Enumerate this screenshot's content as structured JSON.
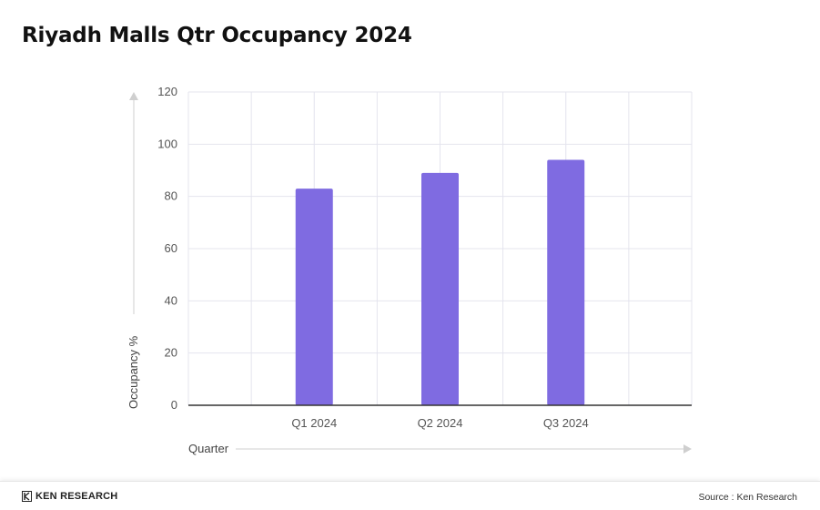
{
  "chart_data": {
    "type": "bar",
    "title": "Riyadh Malls Qtr Occupancy 2024",
    "categories": [
      "Q1 2024",
      "Q2 2024",
      "Q3 2024"
    ],
    "values": [
      83,
      89,
      94
    ],
    "xlabel": "Quarter",
    "ylabel": "Occupancy %",
    "ylim": [
      0,
      120
    ],
    "yticks": [
      0,
      20,
      40,
      60,
      80,
      100,
      120
    ],
    "grid": true,
    "bar_color": "#7f6be1"
  },
  "footer": {
    "brand": "KEN RESEARCH",
    "source": "Source : Ken Research"
  },
  "icons": {
    "brand_logo": "ken-research-logo-icon"
  }
}
